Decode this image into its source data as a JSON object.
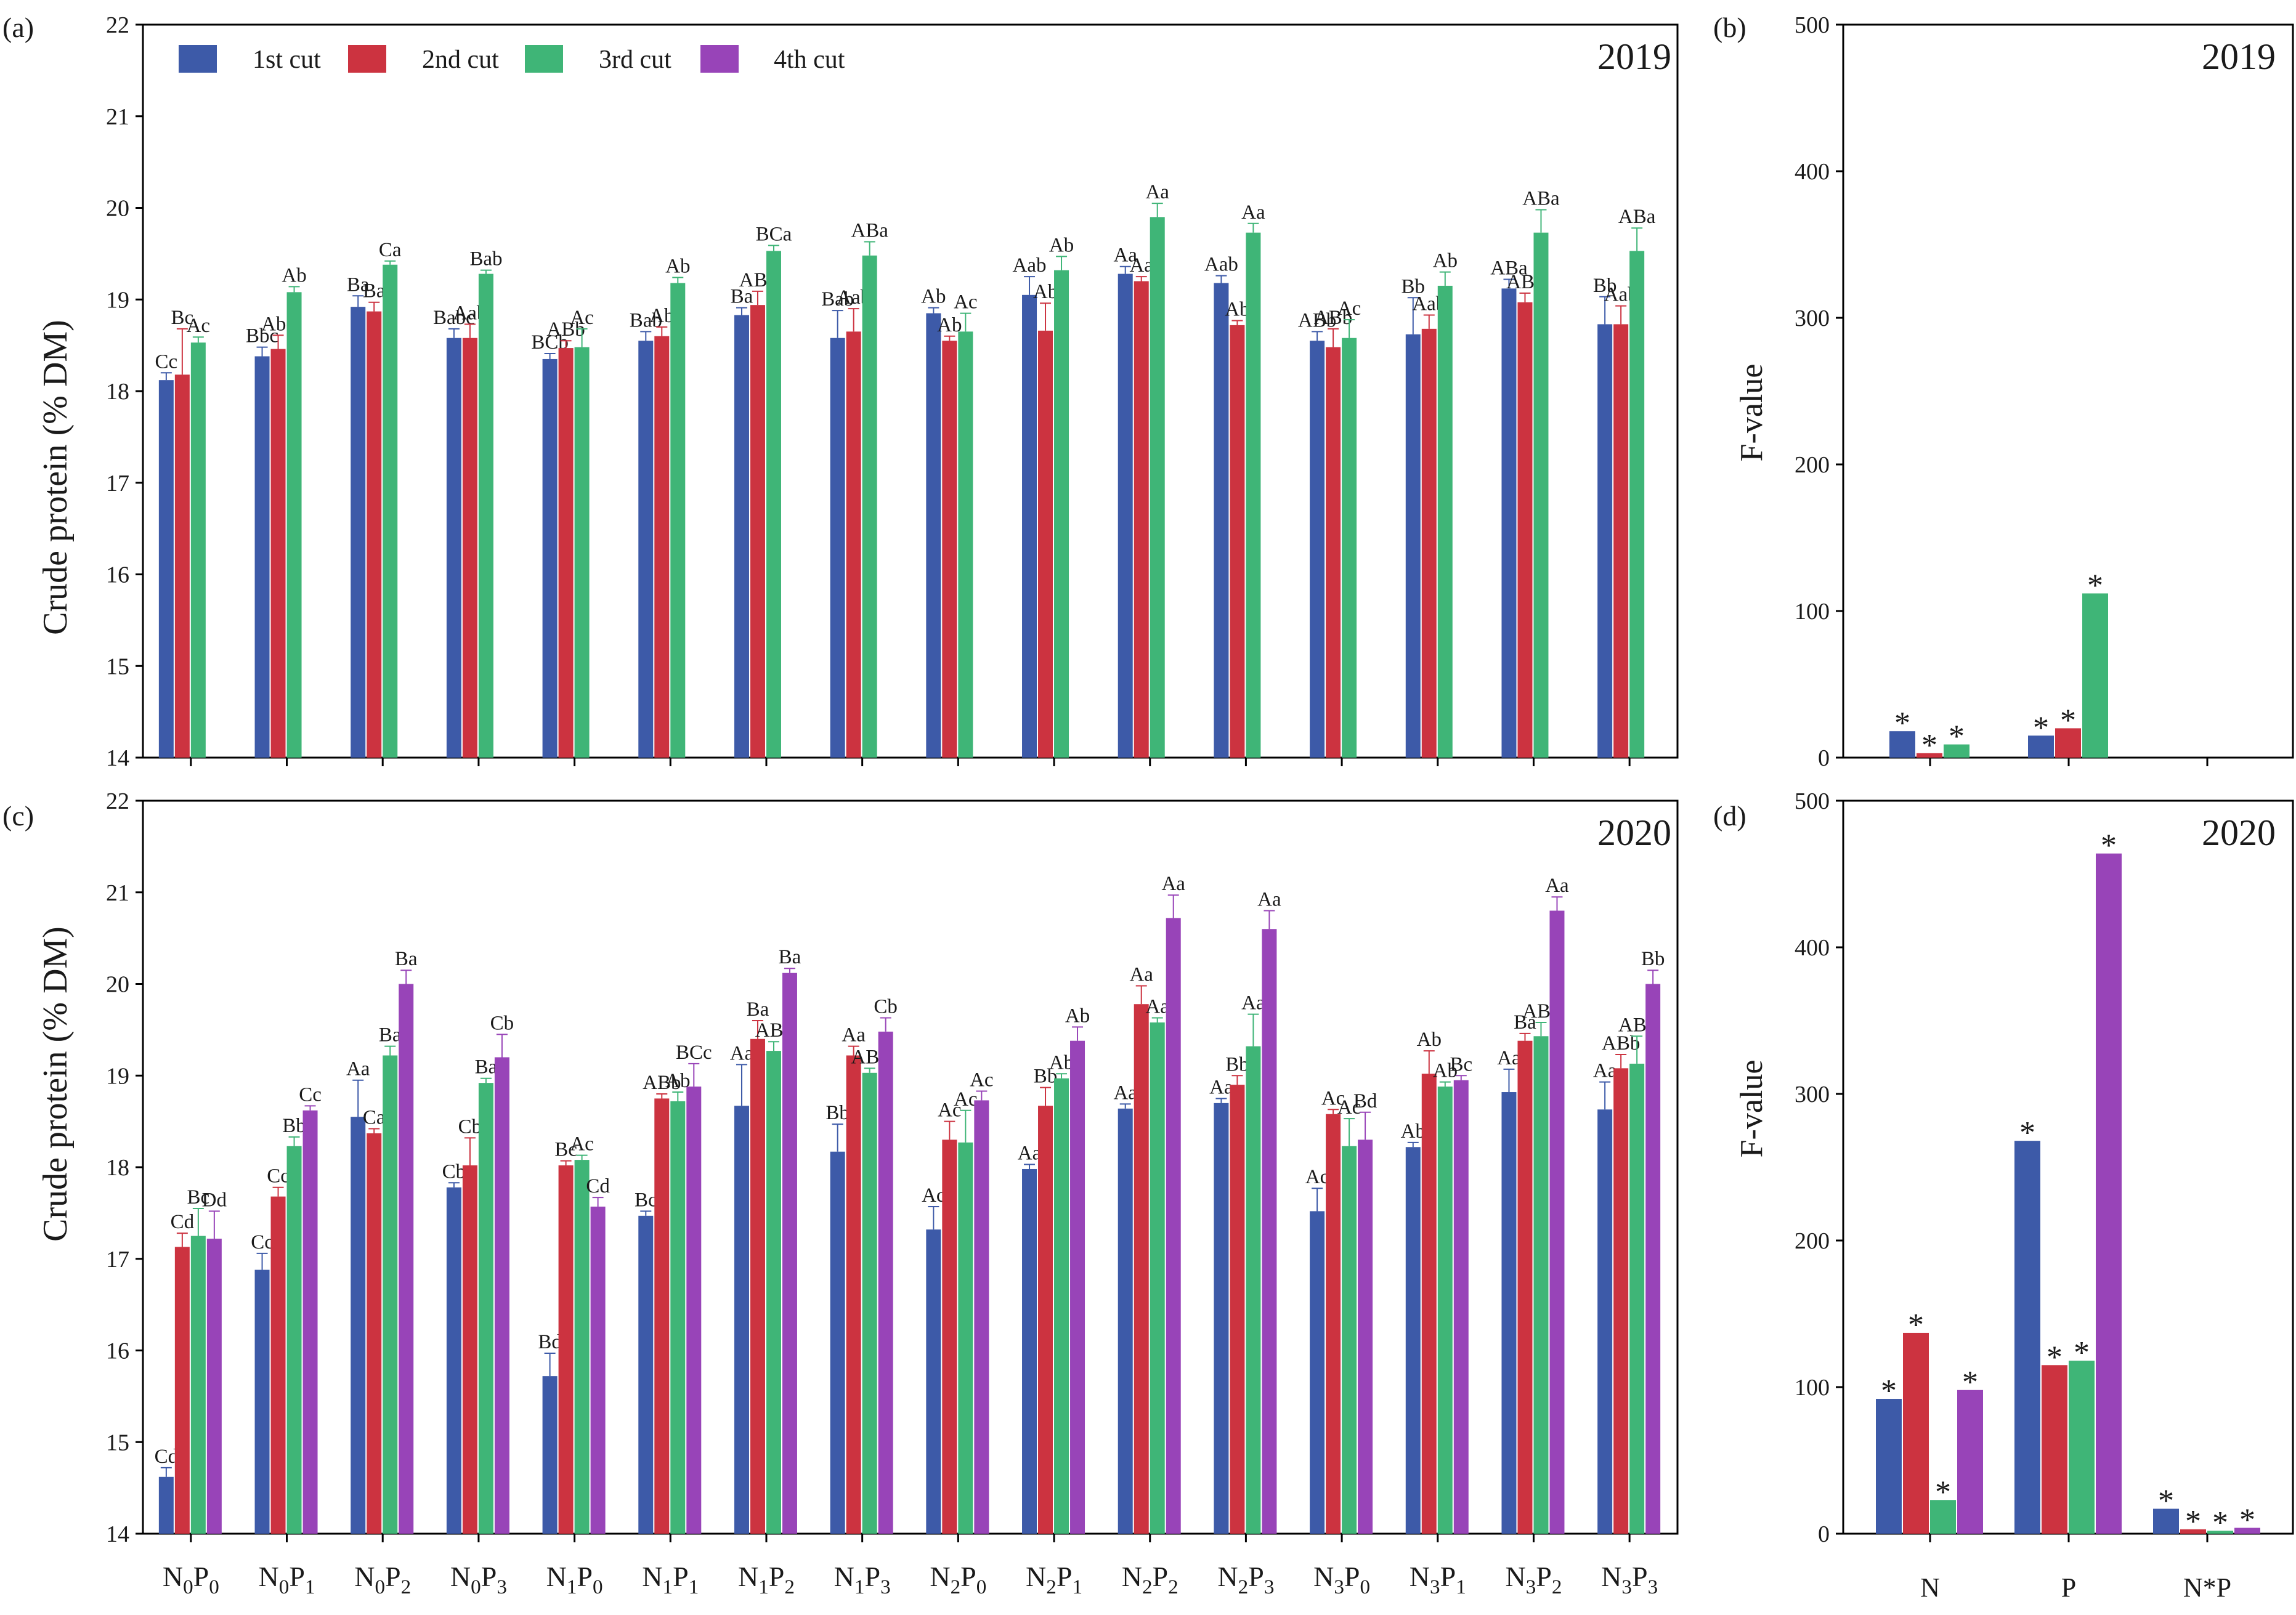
{
  "colors": {
    "c1": "#3d5aa8",
    "c2": "#cc3340",
    "c3": "#3fb577",
    "c4": "#9844b8"
  },
  "categories": [
    "N0P0",
    "N0P1",
    "N0P2",
    "N0P3",
    "N1P0",
    "N1P1",
    "N1P2",
    "N1P3",
    "N2P0",
    "N2P1",
    "N2P2",
    "N2P3",
    "N3P0",
    "N3P1",
    "N3P2",
    "N3P3"
  ],
  "chart_data": [
    {
      "panel": "(a)",
      "type": "bar",
      "year": "2019",
      "ylabel": "Crude protein (% DM)",
      "ylim": [
        14,
        22
      ],
      "yticks": [
        14,
        15,
        16,
        17,
        18,
        19,
        20,
        21,
        22
      ],
      "legend": [
        "1st cut",
        "2nd cut",
        "3rd cut",
        "4th cut"
      ],
      "series": [
        {
          "name": "1st cut",
          "values": [
            18.12,
            18.38,
            18.92,
            18.58,
            18.35,
            18.55,
            18.83,
            18.58,
            18.85,
            19.05,
            19.28,
            19.18,
            18.55,
            18.62,
            19.12,
            18.73
          ],
          "errors": [
            0.08,
            0.1,
            0.12,
            0.1,
            0.06,
            0.1,
            0.08,
            0.3,
            0.06,
            0.2,
            0.08,
            0.08,
            0.1,
            0.4,
            0.1,
            0.3
          ],
          "labels": [
            "Cc",
            "Bbc",
            "Ba",
            "Babc",
            "BCb",
            "Bab",
            "Ba",
            "Bab",
            "Ab",
            "Aab",
            "Aa",
            "Aab",
            "ABb",
            "Bb",
            "ABa",
            "Bb"
          ]
        },
        {
          "name": "2nd cut",
          "values": [
            18.18,
            18.46,
            18.87,
            18.58,
            18.47,
            18.6,
            18.94,
            18.65,
            18.55,
            18.66,
            19.2,
            18.72,
            18.48,
            18.68,
            18.97,
            18.73
          ],
          "errors": [
            0.5,
            0.15,
            0.1,
            0.15,
            0.08,
            0.1,
            0.15,
            0.25,
            0.05,
            0.3,
            0.05,
            0.05,
            0.2,
            0.15,
            0.1,
            0.2
          ],
          "labels": [
            "Bc",
            "Abc",
            "Ba",
            "Aab",
            "ABb",
            "Ab",
            "ABa",
            "Aab",
            "Ab",
            "Ab",
            "Aa",
            "Ab",
            "ABb",
            "Aab",
            "ABa",
            "Aab"
          ]
        },
        {
          "name": "3rd cut",
          "values": [
            18.53,
            19.08,
            19.38,
            19.28,
            18.48,
            19.18,
            19.53,
            19.48,
            18.65,
            19.32,
            19.9,
            19.73,
            18.58,
            19.15,
            19.73,
            19.53
          ],
          "errors": [
            0.06,
            0.06,
            0.04,
            0.04,
            0.2,
            0.06,
            0.06,
            0.15,
            0.2,
            0.15,
            0.15,
            0.1,
            0.2,
            0.15,
            0.25,
            0.25
          ],
          "labels": [
            "Ac",
            "Ab",
            "Ca",
            "Bab",
            "Ac",
            "Ab",
            "BCa",
            "ABa",
            "Ac",
            "Ab",
            "Aa",
            "Aa",
            "Ac",
            "Ab",
            "ABa",
            "ABa"
          ]
        }
      ]
    },
    {
      "panel": "(b)",
      "type": "bar",
      "year": "2019",
      "ylabel": "F-value",
      "ylim": [
        0,
        500
      ],
      "yticks": [
        0,
        100,
        200,
        300,
        400,
        500
      ],
      "categories": [
        "N",
        "P",
        "N*P"
      ],
      "series": [
        {
          "name": "1st cut",
          "values": [
            18,
            15,
            0
          ],
          "stars": [
            "*",
            "*",
            ""
          ]
        },
        {
          "name": "2nd cut",
          "values": [
            3,
            20,
            0
          ],
          "stars": [
            "*",
            "*",
            ""
          ]
        },
        {
          "name": "3rd cut",
          "values": [
            9,
            112,
            0
          ],
          "stars": [
            "*",
            "*",
            ""
          ]
        }
      ]
    },
    {
      "panel": "(c)",
      "type": "bar",
      "year": "2020",
      "ylabel": "Crude protein (% DM)",
      "ylim": [
        14,
        22
      ],
      "yticks": [
        14,
        15,
        16,
        17,
        18,
        19,
        20,
        21,
        22
      ],
      "series": [
        {
          "name": "1st cut",
          "values": [
            14.62,
            16.88,
            18.55,
            17.78,
            15.72,
            17.47,
            18.67,
            18.17,
            17.32,
            17.98,
            18.64,
            18.7,
            17.52,
            18.22,
            18.82,
            18.63
          ],
          "errors": [
            0.1,
            0.18,
            0.4,
            0.05,
            0.25,
            0.05,
            0.45,
            0.3,
            0.25,
            0.05,
            0.05,
            0.05,
            0.25,
            0.05,
            0.25,
            0.3
          ],
          "labels": [
            "Cd",
            "Cc",
            "Aa",
            "Cb",
            "Bd",
            "Bc",
            "Aa",
            "Bb",
            "Ac",
            "Aa",
            "Aa",
            "Aa",
            "Ac",
            "Ab",
            "Aa",
            "Aa"
          ]
        },
        {
          "name": "2nd cut",
          "values": [
            17.13,
            17.68,
            18.37,
            18.02,
            18.02,
            18.75,
            19.4,
            19.22,
            18.3,
            18.67,
            19.78,
            18.9,
            18.58,
            19.02,
            19.38,
            19.08
          ],
          "errors": [
            0.15,
            0.1,
            0.05,
            0.3,
            0.05,
            0.05,
            0.2,
            0.1,
            0.2,
            0.2,
            0.2,
            0.1,
            0.05,
            0.25,
            0.08,
            0.15
          ],
          "labels": [
            "Cd",
            "Cc",
            "Ca",
            "Cb",
            "Bc",
            "ABb",
            "Ba",
            "Aa",
            "Ac",
            "Bb",
            "Aa",
            "Bb",
            "Ac",
            "Ab",
            "Ba",
            "ABb"
          ]
        },
        {
          "name": "3rd cut",
          "values": [
            17.25,
            18.23,
            19.22,
            18.92,
            18.08,
            18.72,
            19.27,
            19.03,
            18.27,
            18.97,
            19.58,
            19.32,
            18.23,
            18.88,
            19.43,
            19.13
          ],
          "errors": [
            0.3,
            0.1,
            0.1,
            0.05,
            0.05,
            0.1,
            0.1,
            0.05,
            0.35,
            0.05,
            0.05,
            0.35,
            0.3,
            0.05,
            0.15,
            0.3
          ],
          "labels": [
            "Bc",
            "Bb",
            "Ba",
            "Ba",
            "Ac",
            "Ab",
            "ABa",
            "ABa",
            "Ac",
            "Ab",
            "Aa",
            "Aa",
            "Ac",
            "Ab",
            "ABa",
            "ABa"
          ]
        },
        {
          "name": "4th cut",
          "values": [
            17.22,
            18.62,
            20.0,
            19.2,
            17.57,
            18.88,
            20.12,
            19.48,
            18.73,
            19.38,
            20.72,
            20.6,
            18.3,
            18.95,
            20.8,
            20.0
          ],
          "errors": [
            0.3,
            0.05,
            0.15,
            0.25,
            0.1,
            0.25,
            0.05,
            0.15,
            0.1,
            0.15,
            0.25,
            0.2,
            0.3,
            0.05,
            0.15,
            0.15
          ],
          "labels": [
            "Dd",
            "Cc",
            "Ba",
            "Cb",
            "Cd",
            "BCc",
            "Ba",
            "Cb",
            "Ac",
            "Ab",
            "Aa",
            "Aa",
            "Bd",
            "Bc",
            "Aa",
            "Bb"
          ]
        }
      ]
    },
    {
      "panel": "(d)",
      "type": "bar",
      "year": "2020",
      "ylabel": "F-value",
      "ylim": [
        0,
        500
      ],
      "yticks": [
        0,
        100,
        200,
        300,
        400,
        500
      ],
      "categories": [
        "N",
        "P",
        "N*P"
      ],
      "series": [
        {
          "name": "1st cut",
          "values": [
            92,
            268,
            17
          ],
          "stars": [
            "*",
            "*",
            "*"
          ]
        },
        {
          "name": "2nd cut",
          "values": [
            137,
            115,
            3
          ],
          "stars": [
            "*",
            "*",
            "*"
          ]
        },
        {
          "name": "3rd cut",
          "values": [
            23,
            118,
            2
          ],
          "stars": [
            "*",
            "*",
            "*"
          ]
        },
        {
          "name": "4th cut",
          "values": [
            98,
            464,
            4
          ],
          "stars": [
            "*",
            "*",
            "*"
          ]
        }
      ]
    }
  ]
}
